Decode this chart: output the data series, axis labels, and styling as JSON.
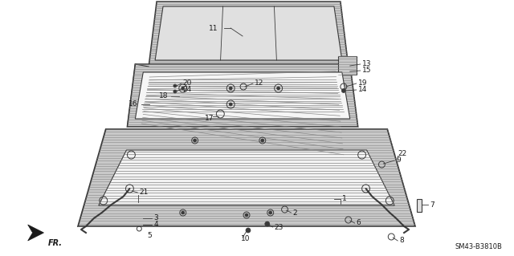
{
  "bg_color": "#ffffff",
  "fig_width": 6.4,
  "fig_height": 3.19,
  "diagram_code": "SM43-B3810B",
  "line_color": "#3a3a3a",
  "text_color": "#1a1a1a",
  "font_size": 6.5,
  "hatch_color": "#888888",
  "frame_fill": "#c8c8c8",
  "glass_fill": "#e0e0e0"
}
